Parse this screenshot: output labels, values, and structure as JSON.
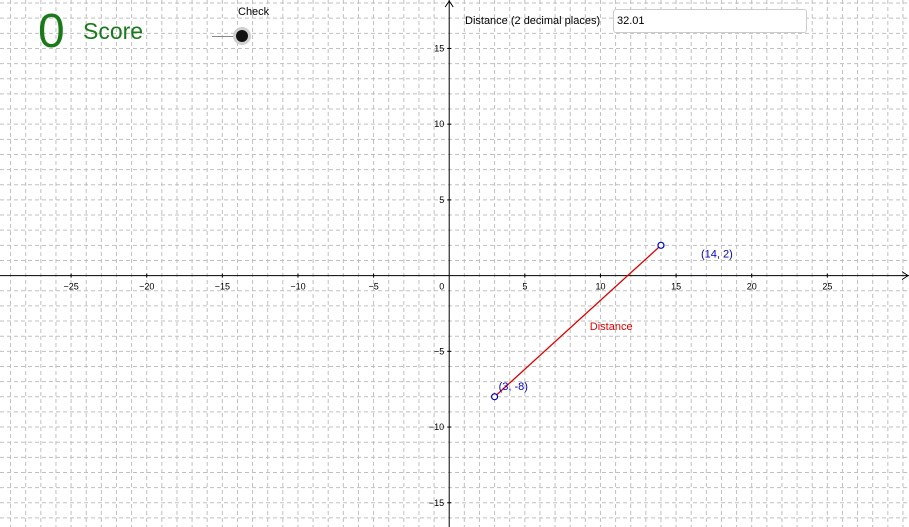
{
  "score": {
    "value": "0",
    "label": "Score"
  },
  "check": {
    "label": "Check"
  },
  "distance_input": {
    "label": "Distance (2 decimal places)",
    "value": "32.01"
  },
  "colors": {
    "score": "#1a7a1a",
    "segment": "#e00000",
    "point": "#0000cc",
    "grid": "#c0c0c0",
    "axis": "#000000"
  },
  "graph": {
    "x_range": [
      -29.7,
      30.4
    ],
    "y_range": [
      -16.6,
      18.2
    ],
    "x_ticks": [
      {
        "value": -25,
        "label": "−25"
      },
      {
        "value": -20,
        "label": "−20"
      },
      {
        "value": -15,
        "label": "−15"
      },
      {
        "value": -10,
        "label": "−10"
      },
      {
        "value": -5,
        "label": "−5"
      },
      {
        "value": 5,
        "label": "5"
      },
      {
        "value": 10,
        "label": "10"
      },
      {
        "value": 15,
        "label": "15"
      },
      {
        "value": 20,
        "label": "20"
      },
      {
        "value": 25,
        "label": "25"
      }
    ],
    "y_ticks": [
      {
        "value": 15,
        "label": "15"
      },
      {
        "value": 10,
        "label": "10"
      },
      {
        "value": 5,
        "label": "5"
      },
      {
        "value": -5,
        "label": "−5"
      },
      {
        "value": -10,
        "label": "−10"
      },
      {
        "value": -15,
        "label": "−15"
      }
    ],
    "origin_label": "0",
    "points": [
      {
        "x": 3,
        "y": -8,
        "label": "(3, -8)"
      },
      {
        "x": 14,
        "y": 2,
        "label": "(14, 2)"
      }
    ],
    "segment_label": "Distance"
  }
}
